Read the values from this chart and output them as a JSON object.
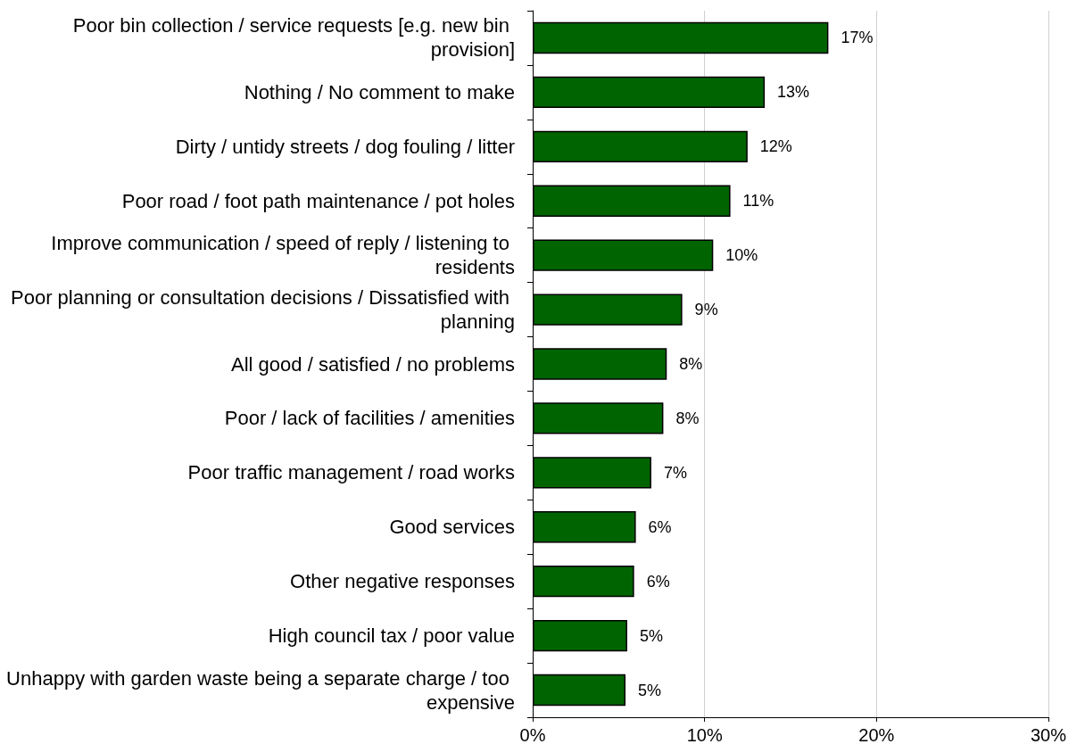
{
  "chart_data": {
    "type": "bar",
    "orientation": "horizontal",
    "categories": [
      "Poor bin collection / service requests [e.g. new bin provision]",
      "Nothing / No comment to make",
      "Dirty / untidy streets / dog fouling / litter",
      "Poor road / foot path maintenance / pot holes",
      "Improve communication / speed of reply / listening to residents",
      "Poor planning or consultation decisions / Dissatisfied with planning",
      "All good / satisfied / no problems",
      "Poor / lack of facilities / amenities",
      "Poor traffic management / road works",
      "Good services",
      "Other negative responses",
      "High council tax / poor value",
      "Unhappy with garden waste being a separate charge / too expensive"
    ],
    "values": [
      17.2,
      13.5,
      12.5,
      11.5,
      10.5,
      8.7,
      7.8,
      7.6,
      6.9,
      6.0,
      5.9,
      5.5,
      5.4
    ],
    "value_labels": [
      "17%",
      "13%",
      "12%",
      "11%",
      "10%",
      "9%",
      "8%",
      "8%",
      "7%",
      "6%",
      "6%",
      "5%",
      "5%"
    ],
    "color": "#006400",
    "xlim": [
      0,
      30
    ],
    "xticks": [
      {
        "value": 0,
        "label": "0%"
      },
      {
        "value": 10,
        "label": "10%"
      },
      {
        "value": 20,
        "label": "20%"
      },
      {
        "value": 30,
        "label": "30%"
      }
    ],
    "grid": "x"
  }
}
